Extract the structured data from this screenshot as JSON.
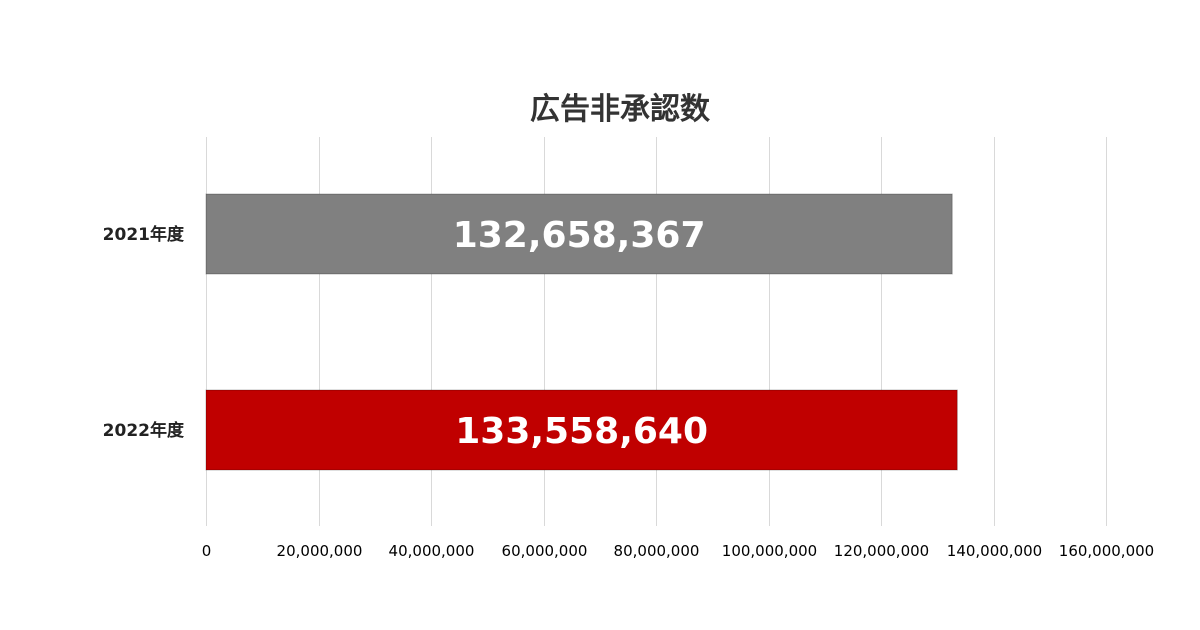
{
  "chart_data": {
    "type": "bar",
    "orientation": "horizontal",
    "title": "広告非承認数",
    "categories": [
      "2021年度",
      "2022年度"
    ],
    "values": [
      132658367,
      133558640
    ],
    "data_labels": [
      "132,658,367",
      "133,558,640"
    ],
    "colors": [
      "#808080",
      "#c00000"
    ],
    "xlim": [
      0,
      160000000
    ],
    "xticks": [
      0,
      20000000,
      40000000,
      60000000,
      80000000,
      100000000,
      120000000,
      140000000,
      160000000
    ],
    "xtick_labels": [
      "0",
      "20,000,000",
      "40,000,000",
      "60,000,000",
      "80,000,000",
      "100,000,000",
      "120,000,000",
      "140,000,000",
      "160,000,000"
    ],
    "grid": true,
    "legend": "none",
    "xlabel": "",
    "ylabel": ""
  }
}
